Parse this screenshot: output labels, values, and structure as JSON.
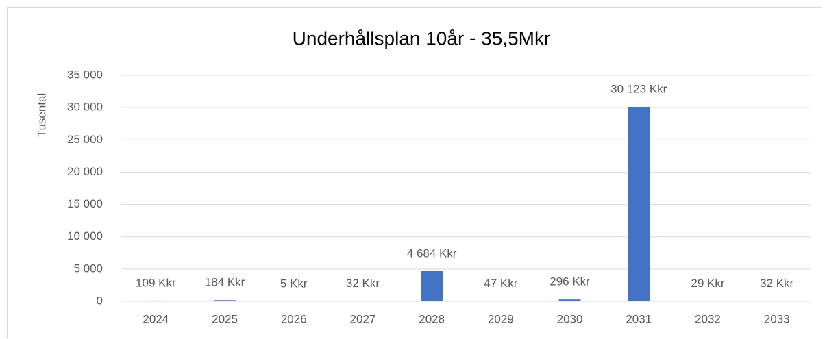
{
  "chart_data": {
    "type": "bar",
    "title": "Underhållsplan 10år - 35,5Mkr",
    "y_label": "Tusental",
    "categories": [
      "2024",
      "2025",
      "2026",
      "2027",
      "2028",
      "2029",
      "2030",
      "2031",
      "2032",
      "2033"
    ],
    "values": [
      109,
      184,
      5,
      32,
      4684,
      47,
      296,
      30123,
      29,
      32
    ],
    "value_labels": [
      "109 Kkr",
      "184 Kkr",
      "5 Kkr",
      "32 Kkr",
      "4 684 Kkr",
      "47 Kkr",
      "296 Kkr",
      "30 123 Kkr",
      "29 Kkr",
      "32 Kkr"
    ],
    "color": "#4472c4",
    "ylim": [
      0,
      35000
    ],
    "yticks": [
      0,
      {
        "value": 5000,
        "label": "5 000"
      },
      {
        "value": 10000,
        "label": "10 000"
      },
      {
        "value": 15000,
        "label": "15 000"
      },
      {
        "value": 20000,
        "label": "20 000"
      },
      {
        "value": 25000,
        "label": "25 000"
      },
      {
        "value": 30000,
        "label": "30 000"
      },
      {
        "value": 35000,
        "label": "35 000"
      }
    ],
    "grid": true
  }
}
